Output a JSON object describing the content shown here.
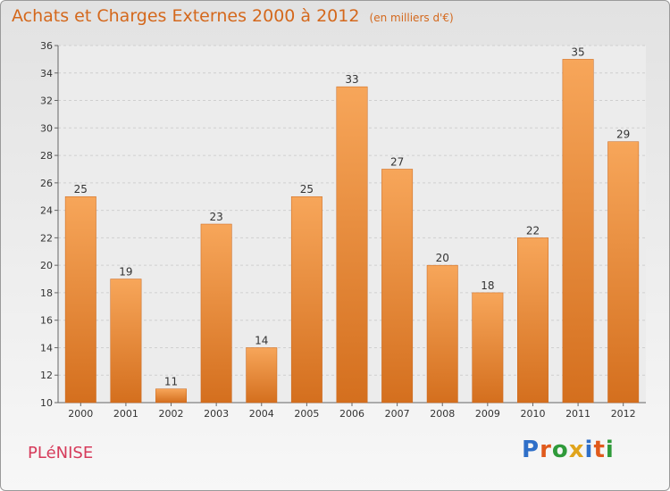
{
  "header": {
    "title": "Achats et Charges Externes 2000 à 2012",
    "subtitle": "(en milliers d'€)"
  },
  "footer": {
    "commune": "PLéNISE",
    "brand_letters": [
      "P",
      "r",
      "o",
      "x",
      "i",
      "t",
      "i"
    ],
    "brand_colors": [
      "#2f6fc8",
      "#e05a1c",
      "#2f9a3a",
      "#e0a41c",
      "#2f6fc8",
      "#e05a1c",
      "#2f9a3a"
    ]
  },
  "colors": {
    "bar_top": "#f7a65a",
    "bar_bottom": "#d46f1e",
    "title": "#d4681c"
  },
  "chart_data": {
    "type": "bar",
    "title": "Achats et Charges Externes 2000 à 2012",
    "subtitle": "(en milliers d'€)",
    "categories": [
      "2000",
      "2001",
      "2002",
      "2003",
      "2004",
      "2005",
      "2006",
      "2007",
      "2008",
      "2009",
      "2010",
      "2011",
      "2012"
    ],
    "values": [
      25,
      19,
      11,
      23,
      14,
      25,
      33,
      27,
      20,
      18,
      22,
      35,
      29
    ],
    "ylim": [
      10,
      36
    ],
    "yticks": [
      10,
      12,
      14,
      16,
      18,
      20,
      22,
      24,
      26,
      28,
      30,
      32,
      34,
      36
    ],
    "grid": true,
    "data_labels": true
  }
}
